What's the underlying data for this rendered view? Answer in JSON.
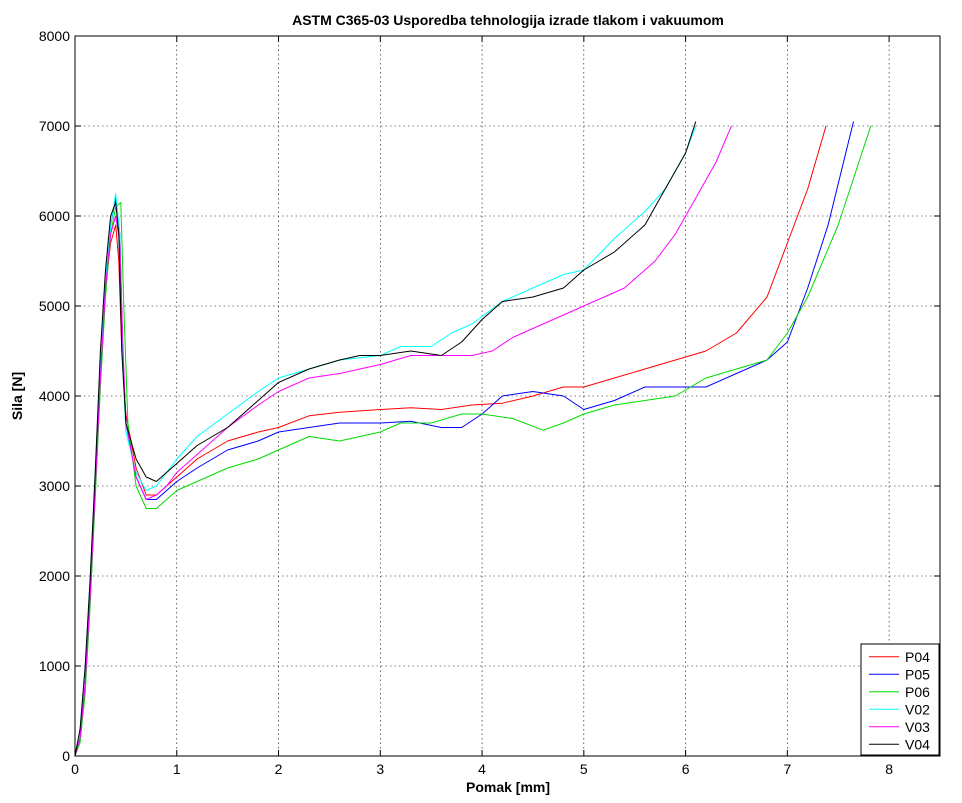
{
  "chart_data": {
    "type": "line",
    "title": "ASTM C365-03 Usporedba tehnologija izrade tlakom i vakuumom",
    "xlabel": "Pomak [mm]",
    "ylabel": "Sila [N]",
    "xlim": [
      0,
      8.5
    ],
    "ylim": [
      0,
      8000
    ],
    "xticks": [
      0,
      1,
      2,
      3,
      4,
      5,
      6,
      7,
      8
    ],
    "yticks": [
      0,
      1000,
      2000,
      3000,
      4000,
      5000,
      6000,
      7000,
      8000
    ],
    "grid": true,
    "legend_position": "bottom-right",
    "series": [
      {
        "name": "P04",
        "color": "#ff0000",
        "x": [
          0,
          0.05,
          0.1,
          0.15,
          0.2,
          0.25,
          0.3,
          0.35,
          0.4,
          0.43,
          0.46,
          0.5,
          0.6,
          0.7,
          0.8,
          0.9,
          1.0,
          1.2,
          1.5,
          1.8,
          2.0,
          2.3,
          2.6,
          3.0,
          3.3,
          3.6,
          3.9,
          4.2,
          4.5,
          4.8,
          5.0,
          5.3,
          5.6,
          5.9,
          6.2,
          6.5,
          6.8,
          7.0,
          7.2,
          7.38
        ],
        "y": [
          0,
          200,
          800,
          1800,
          3000,
          4200,
          5200,
          5700,
          5900,
          5500,
          4500,
          3800,
          3200,
          2900,
          2900,
          3000,
          3100,
          3300,
          3500,
          3600,
          3650,
          3780,
          3820,
          3850,
          3870,
          3850,
          3900,
          3920,
          4000,
          4100,
          4100,
          4200,
          4300,
          4400,
          4500,
          4700,
          5100,
          5700,
          6300,
          7000
        ]
      },
      {
        "name": "P05",
        "color": "#0000ff",
        "x": [
          0,
          0.05,
          0.1,
          0.15,
          0.2,
          0.25,
          0.3,
          0.35,
          0.4,
          0.44,
          0.47,
          0.5,
          0.6,
          0.7,
          0.8,
          0.9,
          1.0,
          1.2,
          1.5,
          1.8,
          2.0,
          2.3,
          2.6,
          3.0,
          3.3,
          3.6,
          3.8,
          4.0,
          4.2,
          4.5,
          4.8,
          5.0,
          5.3,
          5.6,
          5.9,
          6.2,
          6.5,
          6.8,
          7.0,
          7.2,
          7.4,
          7.65
        ],
        "y": [
          0,
          200,
          800,
          1800,
          3100,
          4300,
          5300,
          5900,
          6200,
          5800,
          4500,
          3700,
          3100,
          2850,
          2850,
          2950,
          3050,
          3200,
          3400,
          3500,
          3600,
          3650,
          3700,
          3700,
          3720,
          3650,
          3650,
          3800,
          4000,
          4050,
          4000,
          3850,
          3950,
          4100,
          4100,
          4100,
          4250,
          4400,
          4600,
          5200,
          5900,
          7050
        ]
      },
      {
        "name": "P06",
        "color": "#00dd00",
        "x": [
          0,
          0.05,
          0.1,
          0.15,
          0.2,
          0.25,
          0.3,
          0.35,
          0.4,
          0.45,
          0.48,
          0.52,
          0.6,
          0.7,
          0.8,
          0.9,
          1.0,
          1.2,
          1.5,
          1.8,
          2.0,
          2.3,
          2.6,
          3.0,
          3.2,
          3.5,
          3.8,
          4.0,
          4.3,
          4.6,
          4.8,
          5.0,
          5.3,
          5.6,
          5.9,
          6.2,
          6.5,
          6.8,
          7.0,
          7.2,
          7.5,
          7.82
        ],
        "y": [
          0,
          150,
          700,
          1700,
          2900,
          4100,
          5100,
          5800,
          6100,
          6150,
          5000,
          3700,
          3000,
          2750,
          2750,
          2850,
          2950,
          3050,
          3200,
          3300,
          3400,
          3550,
          3500,
          3600,
          3700,
          3700,
          3800,
          3800,
          3750,
          3620,
          3700,
          3800,
          3900,
          3950,
          4000,
          4200,
          4300,
          4400,
          4700,
          5100,
          5900,
          7000
        ]
      },
      {
        "name": "V02",
        "color": "#00ffff",
        "x": [
          0,
          0.05,
          0.1,
          0.15,
          0.2,
          0.25,
          0.3,
          0.35,
          0.4,
          0.44,
          0.47,
          0.5,
          0.6,
          0.7,
          0.8,
          0.9,
          1.0,
          1.2,
          1.5,
          1.8,
          2.0,
          2.3,
          2.6,
          3.0,
          3.2,
          3.5,
          3.7,
          3.9,
          4.2,
          4.5,
          4.8,
          5.0,
          5.3,
          5.6,
          5.8,
          6.0,
          6.1
        ],
        "y": [
          0,
          300,
          1000,
          2000,
          3200,
          4400,
          5300,
          5900,
          6250,
          5800,
          4300,
          3600,
          3150,
          2950,
          3000,
          3150,
          3300,
          3550,
          3800,
          4050,
          4200,
          4300,
          4400,
          4450,
          4550,
          4550,
          4700,
          4800,
          5050,
          5200,
          5350,
          5400,
          5750,
          6050,
          6300,
          6700,
          7000
        ]
      },
      {
        "name": "V03",
        "color": "#ff00ff",
        "x": [
          0,
          0.05,
          0.1,
          0.15,
          0.2,
          0.25,
          0.3,
          0.35,
          0.4,
          0.44,
          0.47,
          0.5,
          0.6,
          0.7,
          0.8,
          0.9,
          1.0,
          1.2,
          1.5,
          1.8,
          2.0,
          2.3,
          2.6,
          3.0,
          3.3,
          3.6,
          3.9,
          4.1,
          4.3,
          4.6,
          4.9,
          5.1,
          5.4,
          5.7,
          5.9,
          6.1,
          6.3,
          6.45
        ],
        "y": [
          0,
          200,
          800,
          1800,
          3000,
          4200,
          5200,
          5800,
          6000,
          5700,
          4600,
          3700,
          3100,
          2850,
          2900,
          3000,
          3150,
          3350,
          3650,
          3900,
          4050,
          4200,
          4250,
          4350,
          4450,
          4450,
          4450,
          4500,
          4650,
          4800,
          4950,
          5050,
          5200,
          5500,
          5800,
          6200,
          6600,
          7000
        ]
      },
      {
        "name": "V04",
        "color": "#000000",
        "x": [
          0,
          0.05,
          0.1,
          0.15,
          0.2,
          0.25,
          0.3,
          0.35,
          0.4,
          0.43,
          0.46,
          0.5,
          0.6,
          0.7,
          0.8,
          0.9,
          1.0,
          1.2,
          1.5,
          1.8,
          2.0,
          2.3,
          2.6,
          2.8,
          3.0,
          3.3,
          3.6,
          3.8,
          4.0,
          4.2,
          4.5,
          4.8,
          5.0,
          5.3,
          5.6,
          5.8,
          6.0,
          6.1
        ],
        "y": [
          0,
          300,
          1000,
          2000,
          3200,
          4500,
          5400,
          6000,
          6150,
          5800,
          4500,
          3700,
          3300,
          3100,
          3050,
          3150,
          3250,
          3450,
          3650,
          3950,
          4150,
          4300,
          4400,
          4450,
          4450,
          4500,
          4450,
          4600,
          4850,
          5050,
          5100,
          5200,
          5400,
          5600,
          5900,
          6300,
          6700,
          7050
        ]
      }
    ]
  }
}
